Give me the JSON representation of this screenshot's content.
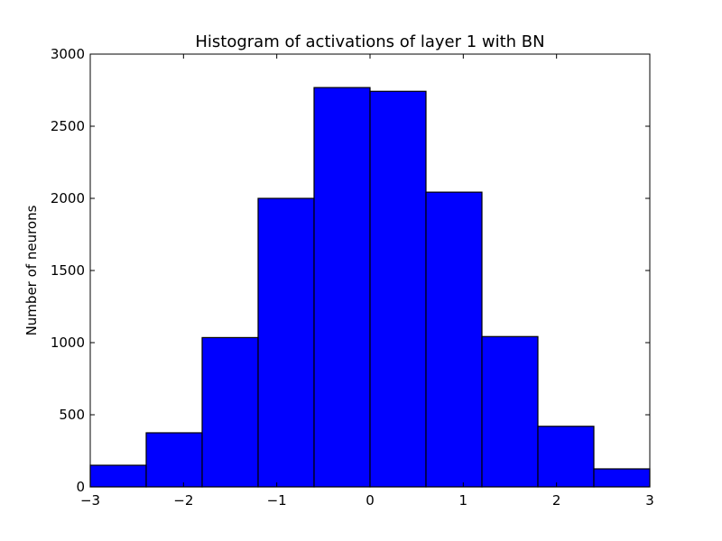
{
  "chart_data": {
    "type": "bar",
    "title": "Histogram of activations of layer 1  with BN",
    "xlabel": "",
    "ylabel": "Number of neurons",
    "xlim": [
      -3,
      3
    ],
    "ylim": [
      0,
      3000
    ],
    "grid": false,
    "legend": "none",
    "bin_edges": [
      -3.0,
      -2.4,
      -1.8,
      -1.2,
      -0.6,
      0.0,
      0.6,
      1.2,
      1.8,
      2.4,
      3.0
    ],
    "values": [
      150,
      375,
      1035,
      2000,
      2768,
      2742,
      2043,
      1042,
      420,
      125
    ],
    "x_ticks": [
      {
        "value": -3,
        "label": "−3"
      },
      {
        "value": -2,
        "label": "−2"
      },
      {
        "value": -1,
        "label": "−1"
      },
      {
        "value": 0,
        "label": "0"
      },
      {
        "value": 1,
        "label": "1"
      },
      {
        "value": 2,
        "label": "2"
      },
      {
        "value": 3,
        "label": "3"
      }
    ],
    "y_ticks": [
      {
        "value": 0,
        "label": "0"
      },
      {
        "value": 500,
        "label": "500"
      },
      {
        "value": 1000,
        "label": "1000"
      },
      {
        "value": 1500,
        "label": "1500"
      },
      {
        "value": 2000,
        "label": "2000"
      },
      {
        "value": 2500,
        "label": "2500"
      },
      {
        "value": 3000,
        "label": "3000"
      }
    ],
    "colors": {
      "bar_fill": "#0000ff",
      "bar_edge": "#000000",
      "axes": "#000000"
    }
  }
}
